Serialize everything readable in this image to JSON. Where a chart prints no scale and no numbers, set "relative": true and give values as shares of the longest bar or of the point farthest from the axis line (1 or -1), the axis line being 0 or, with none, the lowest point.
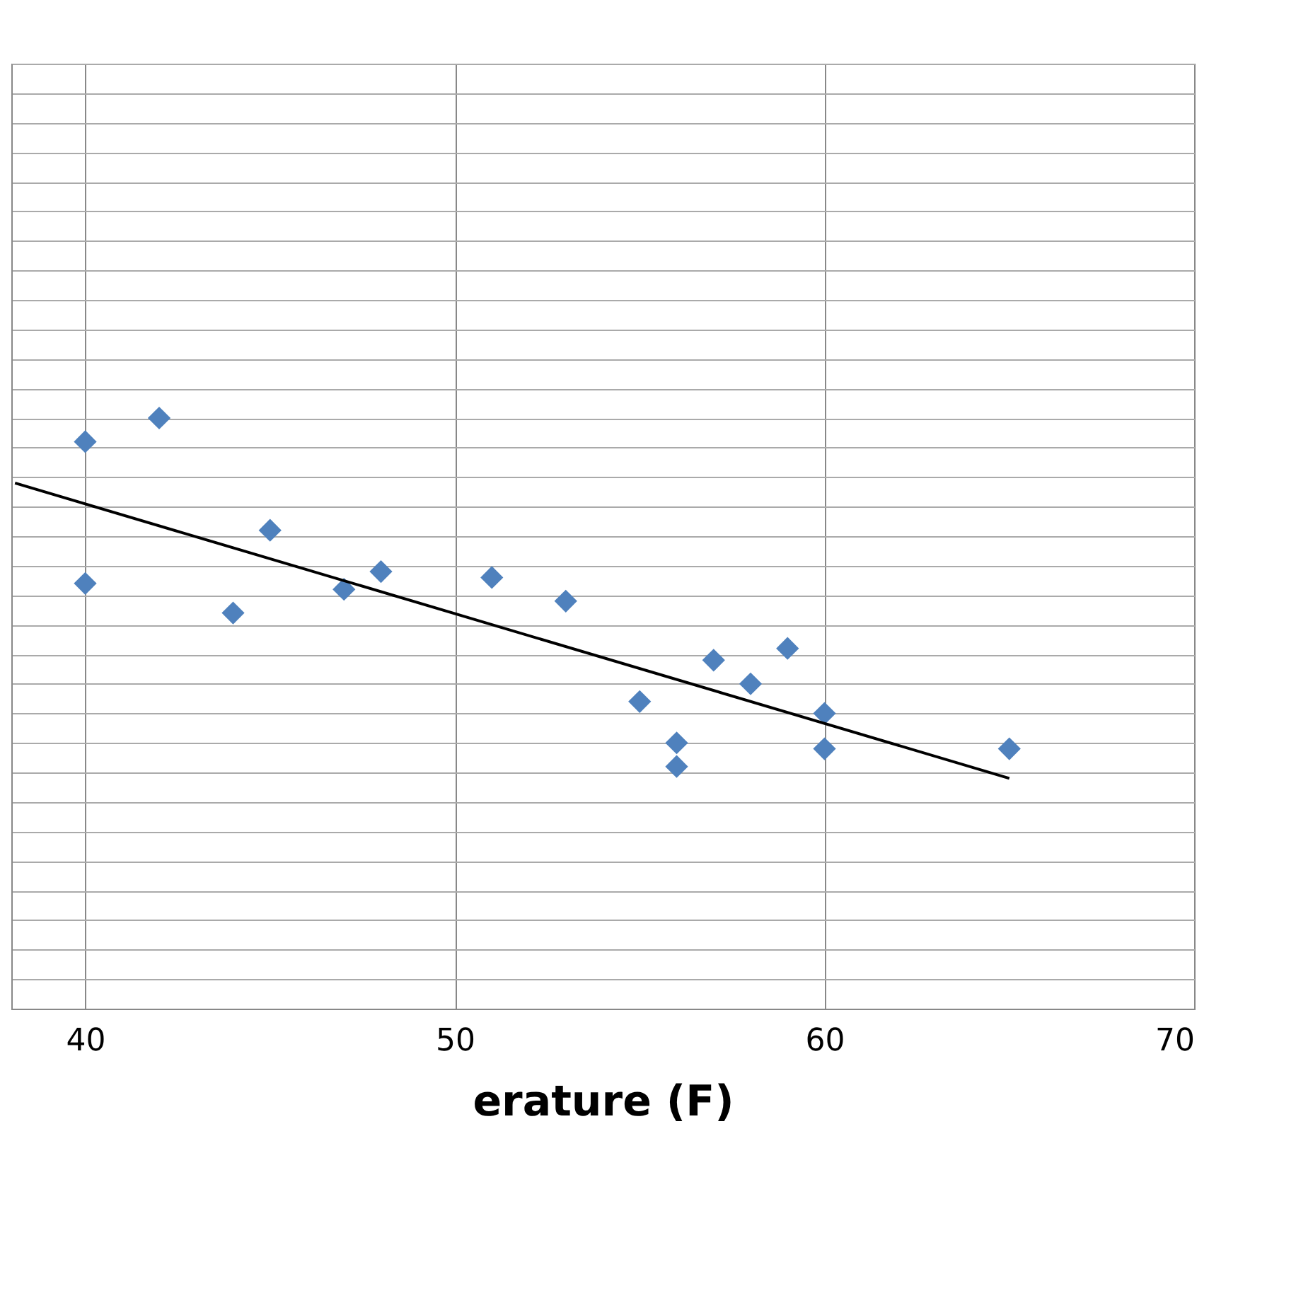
{
  "chart_data": {
    "type": "scatter",
    "xlabel": "erature (F)",
    "xlim": [
      38,
      70
    ],
    "xticks": [
      40,
      50,
      60,
      70
    ],
    "relative": true,
    "grid": true,
    "series": [
      {
        "color": "#4f81bd",
        "marker": "diamond",
        "x": [
          40,
          42,
          40,
          44,
          45,
          47,
          48,
          51,
          53,
          55,
          56,
          56,
          57,
          58,
          59,
          60,
          60,
          65
        ],
        "values": [
          0.96,
          1.0,
          0.72,
          0.67,
          0.81,
          0.71,
          0.74,
          0.73,
          0.69,
          0.52,
          0.45,
          0.41,
          0.59,
          0.55,
          0.61,
          0.5,
          0.44,
          0.44
        ]
      },
      {
        "type": "line",
        "marker": "none",
        "color": "#000000",
        "x": [
          38.1,
          65
        ],
        "values": [
          0.89,
          0.39
        ]
      }
    ]
  }
}
